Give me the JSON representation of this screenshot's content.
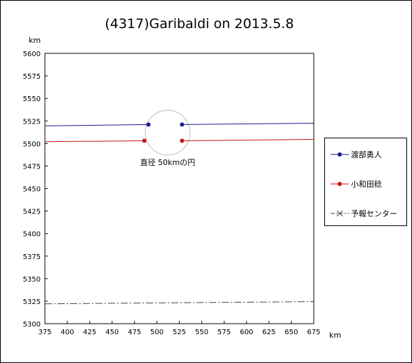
{
  "chart_data": {
    "type": "line",
    "title": "(4317)Garibaldi on 2013.5.8",
    "xunit": "km",
    "yunit": "km",
    "xlim": [
      375,
      675
    ],
    "ylim": [
      5300,
      5600
    ],
    "xticks": [
      375,
      400,
      425,
      450,
      475,
      500,
      525,
      550,
      575,
      600,
      625,
      650,
      675
    ],
    "yticks": [
      5300,
      5325,
      5350,
      5375,
      5400,
      5425,
      5450,
      5475,
      5500,
      5525,
      5550,
      5575,
      5600
    ],
    "grid": false,
    "legend_position": "right",
    "series": [
      {
        "name": "渡部勇人",
        "color": "#1a1a8c",
        "style": "solid",
        "marker": "circle",
        "segments": [
          [
            [
              375,
              5519.5
            ],
            [
              490.5,
              5521
            ]
          ],
          [
            [
              528,
              5521
            ],
            [
              675,
              5522.5
            ]
          ]
        ],
        "points": [
          [
            490.5,
            5521
          ],
          [
            528,
            5521
          ]
        ]
      },
      {
        "name": "小和田稔",
        "color": "#cc1111",
        "style": "solid",
        "marker": "circle",
        "segments": [
          [
            [
              375,
              5502
            ],
            [
              486,
              5503
            ]
          ],
          [
            [
              528,
              5503
            ],
            [
              675,
              5504.5
            ]
          ]
        ],
        "points": [
          [
            486,
            5503
          ],
          [
            528,
            5503
          ]
        ]
      },
      {
        "name": "予報センター",
        "color": "#444444",
        "style": "dashdot",
        "marker": "x",
        "segments": [
          [
            [
              375,
              5322
            ],
            [
              675,
              5324.5
            ]
          ]
        ],
        "points": []
      }
    ],
    "annotations": [
      {
        "text": "直径 50kmの円",
        "circle_center": [
          512,
          5512
        ],
        "circle_diameter_km": 50
      }
    ]
  }
}
